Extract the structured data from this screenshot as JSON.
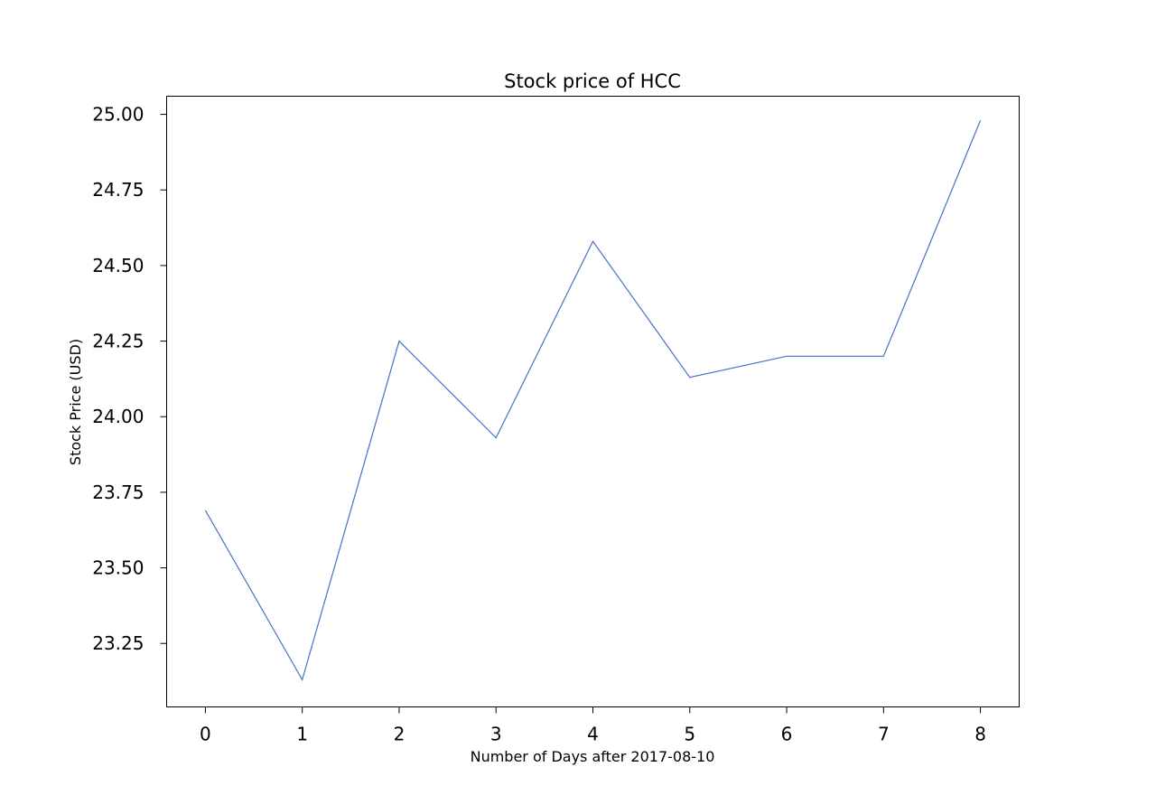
{
  "chart_data": {
    "type": "line",
    "title": "Stock price of HCC",
    "xlabel": "Number of Days after 2017-08-10",
    "ylabel": "Stock Price (USD)",
    "x": [
      0,
      1,
      2,
      3,
      4,
      5,
      6,
      7,
      8
    ],
    "x_ticks": [
      0,
      1,
      2,
      3,
      4,
      5,
      6,
      7,
      8
    ],
    "y_ticks": [
      23.25,
      23.5,
      23.75,
      24.0,
      24.25,
      24.5,
      24.75,
      25.0
    ],
    "xlim": [
      -0.4,
      8.4
    ],
    "ylim": [
      23.04,
      25.06
    ],
    "grid": false,
    "series": [
      {
        "values": [
          23.69,
          23.13,
          24.25,
          23.93,
          24.58,
          24.13,
          24.2,
          24.2,
          24.98
        ],
        "color": "#4472c4"
      }
    ]
  }
}
